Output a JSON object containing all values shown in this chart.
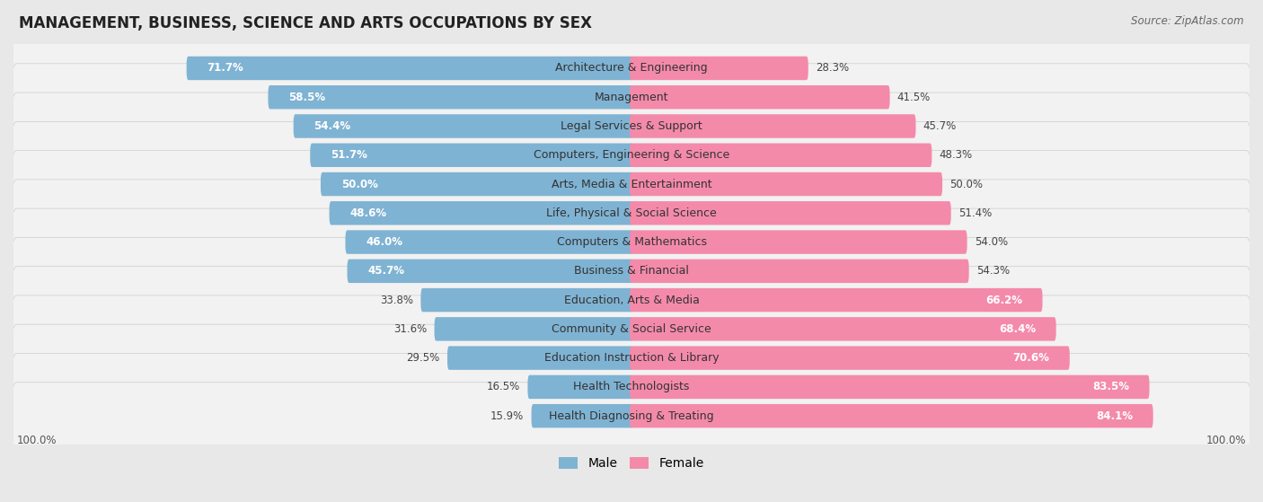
{
  "title": "MANAGEMENT, BUSINESS, SCIENCE AND ARTS OCCUPATIONS BY SEX",
  "source": "Source: ZipAtlas.com",
  "categories": [
    "Architecture & Engineering",
    "Management",
    "Legal Services & Support",
    "Computers, Engineering & Science",
    "Arts, Media & Entertainment",
    "Life, Physical & Social Science",
    "Computers & Mathematics",
    "Business & Financial",
    "Education, Arts & Media",
    "Community & Social Service",
    "Education Instruction & Library",
    "Health Technologists",
    "Health Diagnosing & Treating"
  ],
  "male_pct": [
    71.7,
    58.5,
    54.4,
    51.7,
    50.0,
    48.6,
    46.0,
    45.7,
    33.8,
    31.6,
    29.5,
    16.5,
    15.9
  ],
  "female_pct": [
    28.3,
    41.5,
    45.7,
    48.3,
    50.0,
    51.4,
    54.0,
    54.3,
    66.2,
    68.4,
    70.6,
    83.5,
    84.1
  ],
  "male_color": "#7fb3d3",
  "female_color": "#f48aaa",
  "background_color": "#e8e8e8",
  "row_bg_color": "#f2f2f2",
  "row_border_color": "#cccccc",
  "title_fontsize": 12,
  "label_fontsize": 9,
  "bar_label_fontsize": 8.5,
  "legend_fontsize": 10,
  "male_inside_threshold": 45,
  "female_inside_threshold": 60
}
